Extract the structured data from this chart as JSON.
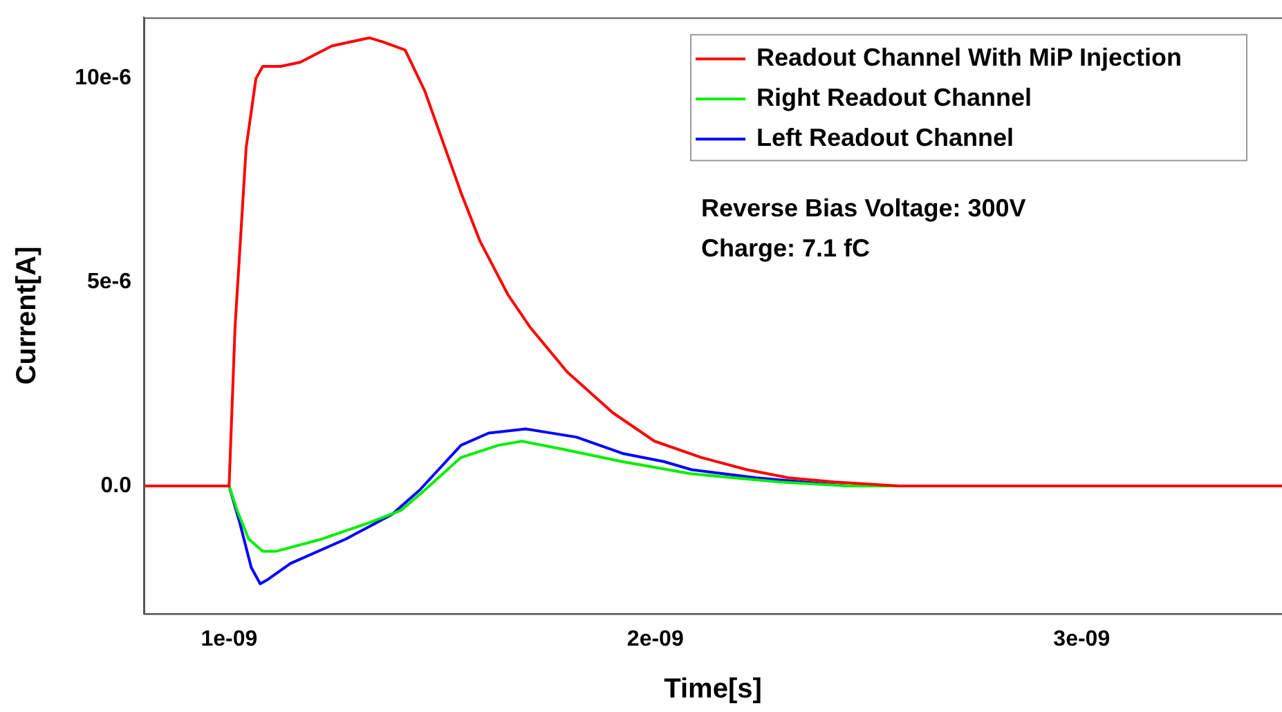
{
  "chart_data": {
    "type": "line",
    "xlabel": "Time[s]",
    "ylabel": "Current[A]",
    "xlim": [
      8e-10,
      3.47e-09
    ],
    "xticks": [
      {
        "value": 1e-09,
        "label": "1e-09"
      },
      {
        "value": 2e-09,
        "label": "2e-09"
      },
      {
        "value": 3e-09,
        "label": "3e-09"
      }
    ],
    "ylim": [
      -3.13e-06,
      1.15e-05
    ],
    "yticks": [
      {
        "value": 0,
        "label": "0.0"
      },
      {
        "value": 5e-06,
        "label": "5e-6"
      },
      {
        "value": 1e-05,
        "label": "10e-6"
      }
    ],
    "grid": false,
    "legend": "top right",
    "marker": "none",
    "line_style": "solid",
    "annotations": [
      "Reverse Bias Voltage: 300V",
      "Charge: 7.1 fC"
    ],
    "series": [
      {
        "name": "Readout Channel With MiP Injection",
        "color": "#ff0000",
        "x": [
          8e-10,
          1e-09,
          1.014e-09,
          1.04e-09,
          1.063e-09,
          1.079e-09,
          1.095e-09,
          1.121e-09,
          1.167e-09,
          1.241e-09,
          1.329e-09,
          1.361e-09,
          1.413e-09,
          1.459e-09,
          1.544e-09,
          1.589e-09,
          1.654e-09,
          1.706e-09,
          1.793e-09,
          1.9e-09,
          1.998e-09,
          2.108e-09,
          2.215e-09,
          2.313e-09,
          2.42e-09,
          2.573e-09,
          2.735e-09,
          3.47e-09
        ],
        "values": [
          0,
          0,
          3.9e-06,
          8.3e-06,
          1e-05,
          1.03e-05,
          1.03e-05,
          1.03e-05,
          1.04e-05,
          1.08e-05,
          1.1e-05,
          1.09e-05,
          1.07e-05,
          9.7e-06,
          7.2e-06,
          6e-06,
          4.7e-06,
          3.9e-06,
          2.8e-06,
          1.8e-06,
          1.1e-06,
          7e-07,
          4e-07,
          2e-07,
          1e-07,
          0,
          0,
          0
        ]
      },
      {
        "name": "Right Readout Channel",
        "color": "#00ee00",
        "x": [
          8e-10,
          1e-09,
          1.019e-09,
          1.046e-09,
          1.079e-09,
          1.111e-09,
          1.218e-09,
          1.329e-09,
          1.403e-09,
          1.459e-09,
          1.544e-09,
          1.632e-09,
          1.687e-09,
          1.784e-09,
          1.922e-09,
          2.085e-09,
          2.291e-09,
          2.453e-09,
          2.735e-09,
          3.47e-09
        ],
        "values": [
          0,
          0,
          -6e-07,
          -1.3e-06,
          -1.6e-06,
          -1.6e-06,
          -1.3e-06,
          -9e-07,
          -6e-07,
          -1e-07,
          7e-07,
          1e-06,
          1.1e-06,
          9e-07,
          6e-07,
          3e-07,
          1e-07,
          0,
          0,
          0
        ]
      },
      {
        "name": "Left Readout Channel",
        "color": "#0000ff",
        "x": [
          8e-10,
          1e-09,
          1.025e-09,
          1.052e-09,
          1.073e-09,
          1.09e-09,
          1.144e-09,
          1.274e-09,
          1.382e-09,
          1.447e-09,
          1.544e-09,
          1.609e-09,
          1.696e-09,
          1.815e-09,
          1.923e-09,
          2.02e-09,
          2.085e-09,
          2.237e-09,
          2.452e-09,
          2.735e-09,
          3.47e-09
        ],
        "values": [
          0,
          0,
          -9e-07,
          -2e-06,
          -2.4e-06,
          -2.3e-06,
          -1.9e-06,
          -1.3e-06,
          -7e-07,
          -1e-07,
          1e-06,
          1.3e-06,
          1.4e-06,
          1.2e-06,
          8e-07,
          6e-07,
          4e-07,
          2e-07,
          0,
          0,
          0
        ]
      }
    ]
  }
}
